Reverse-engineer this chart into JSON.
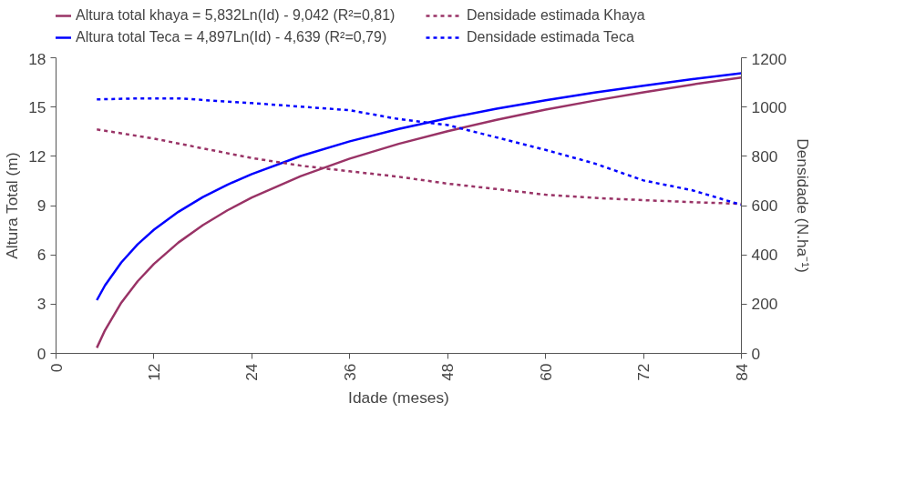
{
  "chart_data": {
    "type": "line",
    "xlabel": "Idade (meses)",
    "ylabel": "Altura Total (m)",
    "y2label": "Densidade (N.ha⁻¹)",
    "x": [
      5,
      6,
      8,
      10,
      12,
      15,
      18,
      21,
      24,
      30,
      36,
      42,
      48,
      54,
      60,
      66,
      72,
      78,
      84
    ],
    "xlim": [
      0,
      84
    ],
    "xticks": [
      0,
      12,
      24,
      36,
      48,
      60,
      72,
      84
    ],
    "ylim": [
      0,
      18
    ],
    "yticks": [
      0,
      3,
      6,
      9,
      12,
      15,
      18
    ],
    "y2lim": [
      0,
      1200
    ],
    "y2ticks": [
      0,
      200,
      400,
      600,
      800,
      1000,
      1200
    ],
    "grid": false,
    "legend": "top",
    "series": [
      {
        "name": "Altura total khaya = 5,832Ln(Id) - 9,042 (R²=0,81)",
        "color": "#993366",
        "line_style": "solid",
        "values": [
          0.34,
          1.41,
          3.09,
          4.39,
          5.45,
          6.75,
          7.81,
          8.71,
          9.49,
          10.79,
          11.86,
          12.76,
          13.53,
          14.22,
          14.84,
          15.39,
          15.9,
          16.37,
          16.8
        ]
      },
      {
        "name": "Altura total Teca = 4,897Ln(Id) - 4,639 (R²=0,79)",
        "color": "#0000ff",
        "line_style": "solid",
        "values": [
          3.24,
          4.14,
          5.54,
          6.64,
          7.53,
          8.62,
          9.52,
          10.27,
          10.92,
          12.02,
          12.91,
          13.67,
          14.32,
          14.9,
          15.41,
          15.88,
          16.3,
          16.7,
          17.06
        ]
      },
      {
        "name": "Densidade estimada Khaya",
        "color": "#993366",
        "line_style": "dashed",
        "axis": "y2",
        "x": [
          5,
          12,
          18,
          24,
          30,
          36,
          42,
          48,
          54,
          60,
          66,
          72,
          78,
          84
        ],
        "values": [
          909,
          872,
          832,
          793,
          762,
          739,
          717,
          689,
          667,
          644,
          631,
          622,
          614,
          607
        ]
      },
      {
        "name": "Densidade estimada Teca",
        "color": "#0000ff",
        "line_style": "dashed",
        "axis": "y2",
        "x": [
          5,
          10,
          15,
          24,
          36,
          42,
          48,
          60,
          66,
          72,
          78,
          84
        ],
        "values": [
          1031,
          1035,
          1035,
          1016,
          987,
          951,
          927,
          826,
          771,
          702,
          662,
          603
        ]
      }
    ]
  }
}
